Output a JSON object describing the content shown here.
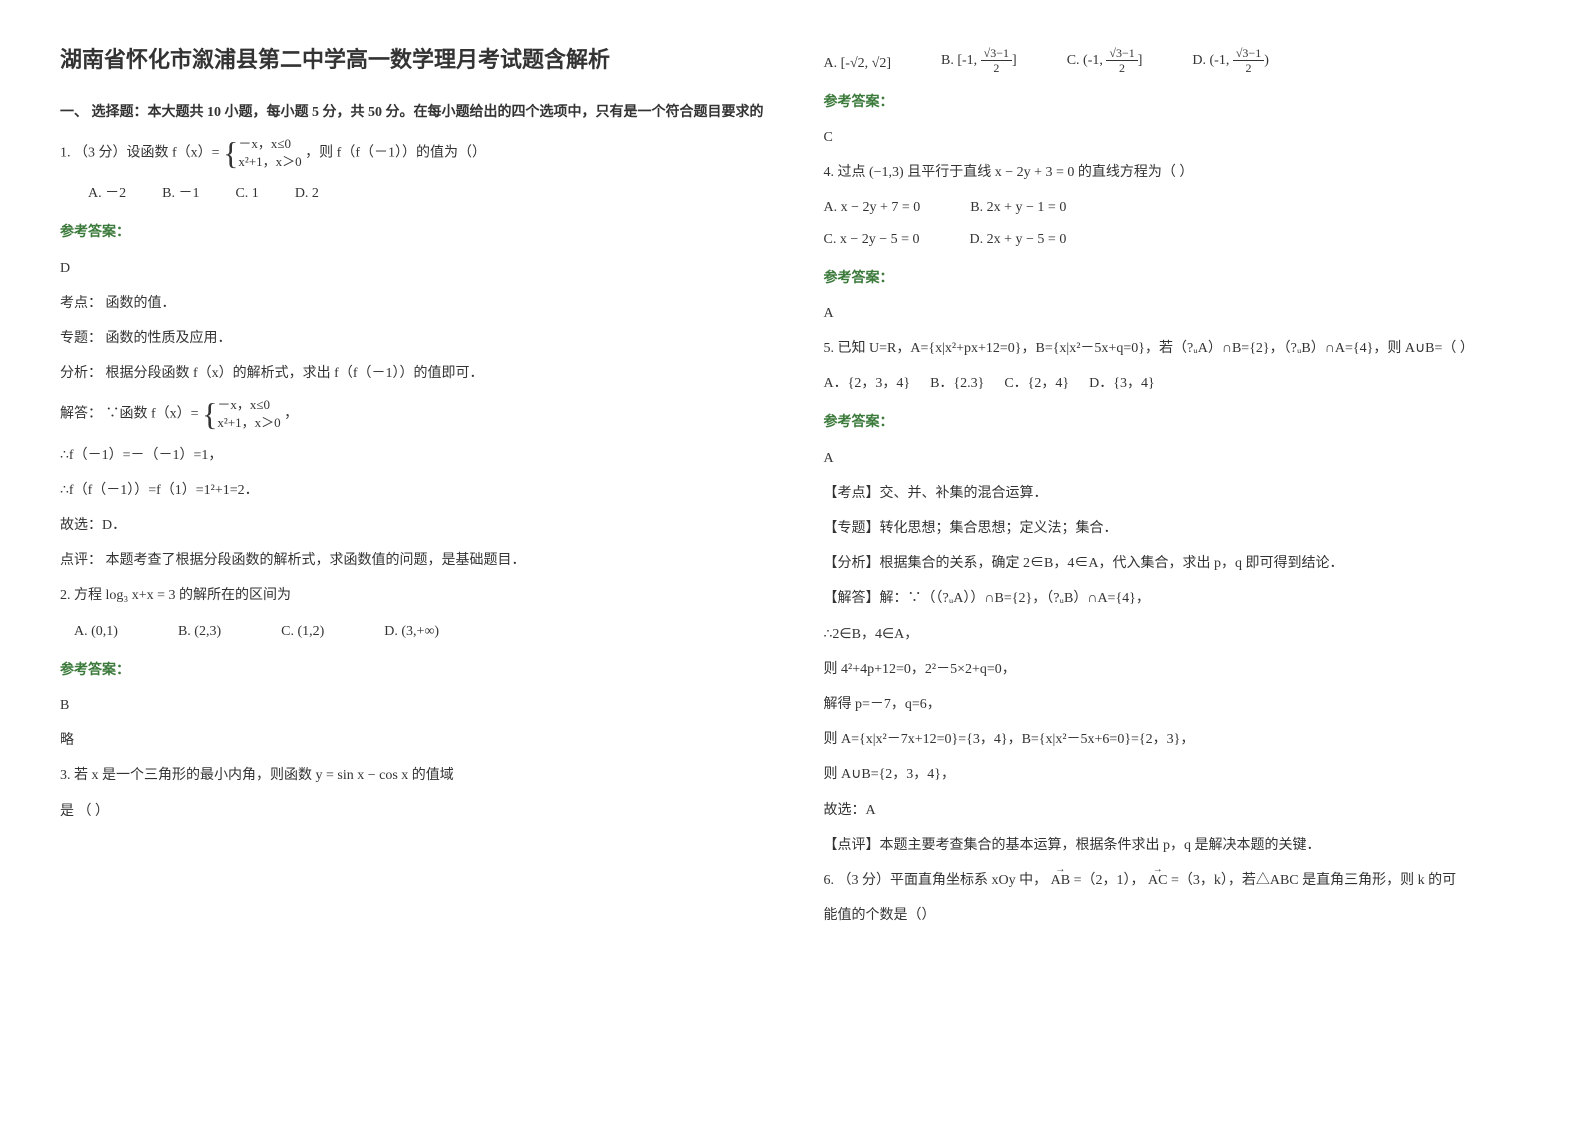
{
  "title": "湖南省怀化市溆浦县第二中学高一数学理月考试题含解析",
  "section1": "一、 选择题：本大题共 10 小题，每小题 5 分，共 50 分。在每小题给出的四个选项中，只有是一个符合题目要求的",
  "q1": {
    "stem_prefix": "1. （3 分）设函数 f（x）=",
    "piece1": "－x，x≤0",
    "piece2": "x²+1，x＞0",
    "stem_suffix": "，则 f（f（－1））的值为（）",
    "optA": "A.    －2",
    "optB": "B.    －1",
    "optC": "C.     1",
    "optD": "D.     2",
    "answer_label": "参考答案：",
    "answer": "D",
    "kaodian": "考点：  函数的值．",
    "zhuanti": "专题：  函数的性质及应用．",
    "fenxi": "分析：  根据分段函数 f（x）的解析式，求出 f（f（－1））的值即可．",
    "jieda_prefix": "解答：  ∵函数 f（x）=",
    "jieda_suffix": "，",
    "step1": "∴f（－1）=－（－1）=1，",
    "step2": "∴f（f（－1））=f（1）=1²+1=2．",
    "guxuan": "故选：D．",
    "dianping": "点评：  本题考查了根据分段函数的解析式，求函数值的问题，是基础题目．"
  },
  "q2": {
    "stem": "2. 方程 log₃ x+x = 3 的解所在的区间为",
    "optA": "A. (0,1)",
    "optB": "B. (2,3)",
    "optC": "C. (1,2)",
    "optD": "D. (3,+∞)",
    "answer_label": "参考答案：",
    "answer": "B",
    "lue": "略"
  },
  "q3": {
    "stem": "3. 若 x 是一个三角形的最小内角，则函数 y = sin x − cos x 的值域",
    "stem2": "是                           （        ）",
    "optA_pre": "A. ",
    "optA": "[-√2, √2]",
    "optB_pre": "B. ",
    "optC_pre": "C. ",
    "optD_pre": "D. ",
    "answer_label": "参考答案：",
    "answer": "C"
  },
  "q4": {
    "stem": "4. 过点 (−1,3) 且平行于直线 x − 2y + 3 = 0 的直线方程为（   ）",
    "optA": "A.  x − 2y + 7 = 0",
    "optB": "B.  2x + y − 1 = 0",
    "optC": "C.  x − 2y − 5 = 0",
    "optD": "D.  2x + y − 5 = 0",
    "answer_label": "参考答案：",
    "answer": "A"
  },
  "q5": {
    "stem": "5. 已知 U=R，A={x|x²+px+12=0}，B={x|x²－5x+q=0}，若（?ᵤA）∩B={2}，（?ᵤB）∩A={4}，则 A∪B=（     ）",
    "optA": "A．{2，3，4}",
    "optB": "B．{2.3}",
    "optC": "C．{2，4}",
    "optD": "D．{3，4}",
    "answer_label": "参考答案：",
    "answer": "A",
    "kaodian": "【考点】交、并、补集的混合运算．",
    "zhuanti": "【专题】转化思想；集合思想；定义法；集合．",
    "fenxi": "【分析】根据集合的关系，确定 2∈B，4∈A，代入集合，求出 p，q 即可得到结论．",
    "jieda1": "【解答】解：∵（（?ᵤA））∩B={2}，（?ᵤB）∩A={4}，",
    "jieda2": "∴2∈B，4∈A，",
    "jieda3": "则 4²+4p+12=0，2²－5×2+q=0，",
    "jieda4": "解得 p=－7，q=6，",
    "jieda5": "则 A={x|x²－7x+12=0}={3，4}，B={x|x²－5x+6=0}={2，3}，",
    "jieda6": "则 A∪B={2，3，4}，",
    "guxuan": "故选：A",
    "dianping": "【点评】本题主要考查集合的基本运算，根据条件求出 p，q 是解决本题的关键．"
  },
  "q6": {
    "stem1": "6. （3 分）平面直角坐标系 xOy 中，",
    "ab": "AB",
    "eq1": "=（2，1），",
    "ac": "AC",
    "eq2": "=（3，k），若△ABC 是直角三角形，则 k 的可",
    "stem2": "能值的个数是（）"
  },
  "colors": {
    "text": "#333333",
    "answer": "#3b7a3b",
    "background": "#ffffff"
  },
  "fonts": {
    "title_size": 22,
    "body_size": 14
  }
}
